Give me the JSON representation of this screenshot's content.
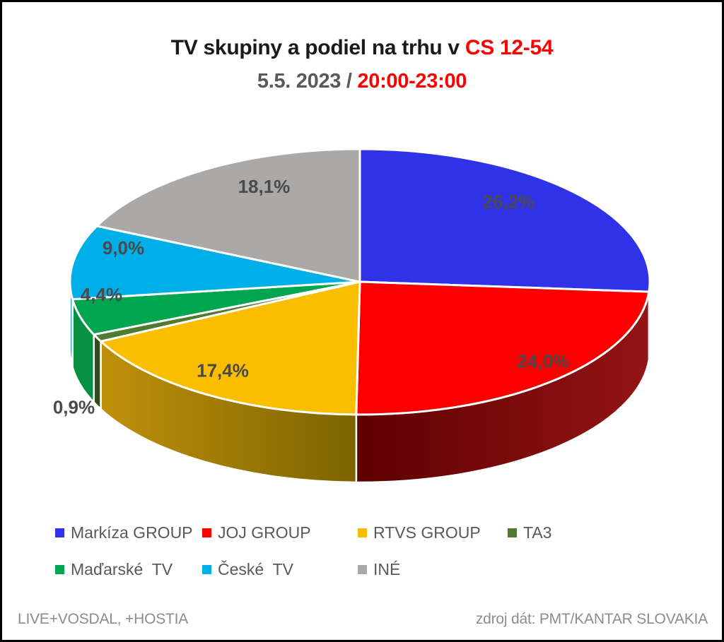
{
  "header": {
    "title_black": "TV skupiny a podiel na trhu v",
    "title_red": "CS 12-54",
    "subtitle_gray": "5.5. 2023 /",
    "subtitle_red": "20:00-23:00"
  },
  "chart_data": {
    "type": "pie",
    "style": "3d",
    "title": "TV skupiny a podiel na trhu v CS 12-54",
    "subtitle": "5.5. 2023 / 20:00-23:00",
    "categories": [
      "Markíza GROUP",
      "JOJ GROUP",
      "RTVS GROUP",
      "TA3",
      "Maďarské  TV",
      "České  TV",
      "INÉ"
    ],
    "values": [
      26.2,
      24.0,
      17.4,
      0.9,
      4.4,
      9.0,
      18.1
    ],
    "labels": [
      "26,2%",
      "24,0%",
      "17,4%",
      "0,9%",
      "4,4%",
      "9,0%",
      "18,1%"
    ],
    "colors": [
      "#3032e8",
      "#fc0000",
      "#f9be00",
      "#4e7b31",
      "#00a64f",
      "#00aee8",
      "#aba9a7"
    ],
    "label_color": "#4a4a4a",
    "legend_position": "bottom",
    "units": "%"
  },
  "legend": {
    "items": [
      {
        "label": "Markíza GROUP",
        "color": "#3032e8"
      },
      {
        "label": "JOJ GROUP",
        "color": "#fc0000"
      },
      {
        "label": "RTVS GROUP",
        "color": "#f9be00"
      },
      {
        "label": "TA3",
        "color": "#4e7b31"
      },
      {
        "label": "Maďarské  TV",
        "color": "#00a64f"
      },
      {
        "label": "České  TV",
        "color": "#00aee8"
      },
      {
        "label": "INÉ",
        "color": "#aba9a7"
      }
    ]
  },
  "footer": {
    "left": "LIVE+VOSDAL, +HOSTIA",
    "right": "zdroj dát: PMT/KANTAR SLOVAKIA"
  }
}
